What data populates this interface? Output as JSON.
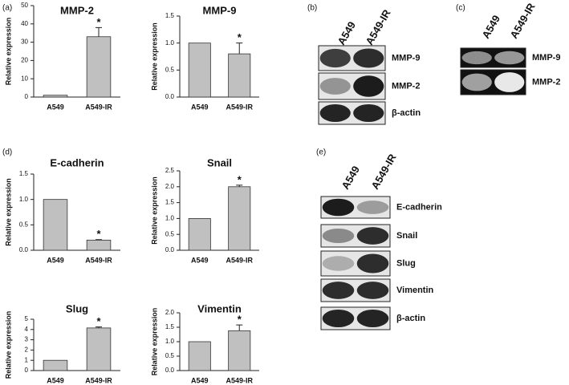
{
  "panel_labels": [
    "(a)",
    "(d)"
  ],
  "chart_data": [
    {
      "type": "bar",
      "title": "MMP-2",
      "y_label": "Relative expression",
      "categories": [
        "A549",
        "A549-IR"
      ],
      "values": [
        1,
        33
      ],
      "errors": [
        null,
        5
      ],
      "annotation": "*",
      "color": "#c0c0c0",
      "ylim": [
        0,
        50
      ],
      "yticks": [
        0,
        10,
        20,
        30,
        40,
        50
      ]
    },
    {
      "type": "bar",
      "title": "MMP-9",
      "y_label": "Relative expression",
      "categories": [
        "A549",
        "A549-IR"
      ],
      "values": [
        1.0,
        0.8
      ],
      "errors": [
        null,
        0.2
      ],
      "annotation": "*",
      "color": "#c0c0c0",
      "ylim": [
        0,
        1.5
      ],
      "yticks": [
        {
          "value": 0,
          "label": "0.0"
        },
        0.5,
        {
          "value": 1,
          "label": "1.0"
        },
        1.5
      ]
    },
    {
      "type": "bar",
      "title": "E-cadherin",
      "y_label": "Relative expression",
      "categories": [
        "A549",
        "A549-IR"
      ],
      "values": [
        1.0,
        0.2
      ],
      "errors": [
        null,
        0.01
      ],
      "annotation": "*",
      "color": "#c0c0c0",
      "ylim": [
        0,
        1.5
      ],
      "yticks": [
        {
          "value": 0,
          "label": "0.0"
        },
        0.5,
        {
          "value": 1,
          "label": "1.0"
        },
        1.5
      ]
    },
    {
      "type": "bar",
      "title": "Snail",
      "y_label": "Relative expression",
      "categories": [
        "A549",
        "A549-IR"
      ],
      "values": [
        1.0,
        2.0
      ],
      "errors": [
        null,
        0.05
      ],
      "annotation": "*",
      "color": "#c0c0c0",
      "ylim": [
        0,
        2.5
      ],
      "yticks": [
        {
          "value": 0,
          "label": "0.0"
        },
        0.5,
        {
          "value": 1,
          "label": "1.0"
        },
        1.5,
        {
          "value": 2,
          "label": "2.0"
        },
        2.5
      ]
    },
    {
      "type": "bar",
      "title": "Slug",
      "y_label": "Relative expression",
      "categories": [
        "A549",
        "A549-IR"
      ],
      "values": [
        1.0,
        4.15
      ],
      "errors": [
        null,
        0.1
      ],
      "annotation": "*",
      "color": "#c0c0c0",
      "ylim": [
        0,
        5
      ],
      "yticks": [
        0,
        1,
        2,
        3,
        4,
        5
      ]
    },
    {
      "type": "bar",
      "title": "Vimentin",
      "y_label": "Relative expression",
      "categories": [
        "A549",
        "A549-IR"
      ],
      "values": [
        1.0,
        1.38
      ],
      "errors": [
        null,
        0.2
      ],
      "annotation": "*",
      "color": "#c0c0c0",
      "ylim": [
        0,
        2
      ],
      "yticks": [
        {
          "value": 0,
          "label": "0.0"
        },
        0.5,
        {
          "value": 1,
          "label": "1.0"
        },
        1.5,
        {
          "value": 2,
          "label": "2.0"
        }
      ]
    }
  ],
  "blots": [
    {
      "panel": "(b)",
      "lanes": [
        "A549",
        "A549-IR"
      ],
      "bands": [
        "MMP-9",
        "MMP-2",
        "β-actin"
      ]
    },
    {
      "panel": "(c)",
      "lanes": [
        "A549",
        "A549-IR"
      ],
      "bands": [
        "MMP-9",
        "MMP-2"
      ]
    },
    {
      "panel": "(e)",
      "lanes": [
        "A549",
        "A549-IR"
      ],
      "bands": [
        "E-cadherin",
        "Snail",
        "Slug",
        "Vimentin",
        "β-actin"
      ]
    }
  ]
}
